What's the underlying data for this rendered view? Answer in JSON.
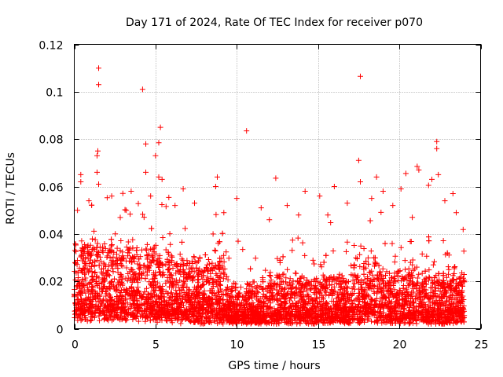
{
  "chart_data": {
    "type": "scatter",
    "title": "Day 171 of 2024, Rate Of TEC Index for receiver p070",
    "xlabel": "GPS time / hours",
    "ylabel": "ROTI / TECUs",
    "xlim": [
      0,
      25
    ],
    "ylim": [
      0,
      0.12
    ],
    "xticks": [
      0,
      5,
      10,
      15,
      20,
      25
    ],
    "xtick_labels": [
      "0",
      "5",
      "10",
      "15",
      "20",
      "25"
    ],
    "yticks": [
      0,
      0.02,
      0.04,
      0.06,
      0.08,
      0.1,
      0.12
    ],
    "ytick_labels": [
      "0",
      "0.02",
      "0.04",
      "0.06",
      "0.08",
      "0.1",
      "0.12"
    ],
    "grid": true,
    "marker": "+",
    "color": "#ff0000",
    "series": [
      {
        "name": "ROTI",
        "points": [
          [
            1.5,
            0.11
          ],
          [
            1.5,
            0.103
          ],
          [
            4.2,
            0.101
          ],
          [
            17.6,
            0.1065
          ],
          [
            10.6,
            0.0835
          ],
          [
            5.3,
            0.085
          ],
          [
            5.2,
            0.0785
          ],
          [
            4.4,
            0.078
          ],
          [
            22.3,
            0.079
          ],
          [
            22.3,
            0.076
          ],
          [
            1.45,
            0.075
          ],
          [
            1.4,
            0.073
          ],
          [
            5.0,
            0.073
          ],
          [
            17.5,
            0.071
          ],
          [
            21.1,
            0.0685
          ],
          [
            21.2,
            0.067
          ],
          [
            1.4,
            0.066
          ],
          [
            4.4,
            0.066
          ],
          [
            0.4,
            0.065
          ],
          [
            12.4,
            0.0635
          ],
          [
            8.8,
            0.064
          ],
          [
            1.5,
            0.061
          ],
          [
            5.2,
            0.064
          ],
          [
            22.4,
            0.065
          ],
          [
            22.0,
            0.063
          ],
          [
            18.6,
            0.064
          ],
          [
            20.4,
            0.0655
          ],
          [
            0.4,
            0.062
          ],
          [
            5.4,
            0.063
          ],
          [
            16.0,
            0.06
          ],
          [
            17.6,
            0.062
          ],
          [
            19.0,
            0.058
          ],
          [
            20.1,
            0.059
          ],
          [
            21.8,
            0.0605
          ],
          [
            23.3,
            0.057
          ],
          [
            6.7,
            0.059
          ],
          [
            8.7,
            0.06
          ],
          [
            3.5,
            0.058
          ],
          [
            14.2,
            0.058
          ],
          [
            15.1,
            0.056
          ],
          [
            2.3,
            0.056
          ],
          [
            0.9,
            0.054
          ],
          [
            10.0,
            0.055
          ],
          [
            13.1,
            0.052
          ],
          [
            16.8,
            0.053
          ],
          [
            18.3,
            0.055
          ],
          [
            22.8,
            0.054
          ],
          [
            4.7,
            0.056
          ],
          [
            6.2,
            0.052
          ],
          [
            11.5,
            0.051
          ],
          [
            7.4,
            0.053
          ],
          [
            19.6,
            0.052
          ],
          [
            0.2,
            0.05
          ],
          [
            23.5,
            0.049
          ],
          [
            12.0,
            0.046
          ],
          [
            9.2,
            0.049
          ],
          [
            13.8,
            0.048
          ],
          [
            15.6,
            0.048
          ],
          [
            20.8,
            0.047
          ],
          [
            3.2,
            0.05
          ]
        ]
      }
    ]
  }
}
